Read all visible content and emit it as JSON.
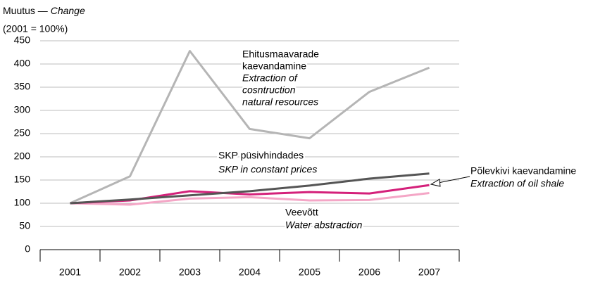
{
  "chart_data": {
    "type": "line",
    "title": "Muutus —",
    "title_en": "Change",
    "subtitle": "(2001 = 100%)",
    "categories": [
      "2001",
      "2002",
      "2003",
      "2004",
      "2005",
      "2006",
      "2007"
    ],
    "ylim": [
      0,
      450
    ],
    "yticks": [
      0,
      50,
      100,
      150,
      200,
      250,
      300,
      350,
      400,
      450
    ],
    "grid": true,
    "series": [
      {
        "name": [
          "Ehitusmaavarade",
          "kaevandamine"
        ],
        "name_en": [
          "Extraction of",
          "cosntruction",
          "natural resources"
        ],
        "color": "#b5b5b5",
        "values": [
          100,
          158,
          428,
          260,
          240,
          340,
          392
        ]
      },
      {
        "name": [
          "SKP püsivhindades"
        ],
        "name_en": [
          "SKP in constant prices"
        ],
        "color": "#555555",
        "values": [
          100,
          108,
          117,
          126,
          138,
          153,
          164
        ]
      },
      {
        "name": [
          "Põlevkivi kaevandamine"
        ],
        "name_en": [
          "Extraction of oil shale"
        ],
        "color": "#d4207a",
        "values": [
          100,
          106,
          126,
          119,
          124,
          121,
          139
        ]
      },
      {
        "name": [
          "Veevõtt"
        ],
        "name_en": [
          "Water abstraction"
        ],
        "color": "#f4a6c6",
        "values": [
          100,
          97,
          110,
          113,
          106,
          107,
          122
        ]
      }
    ]
  }
}
